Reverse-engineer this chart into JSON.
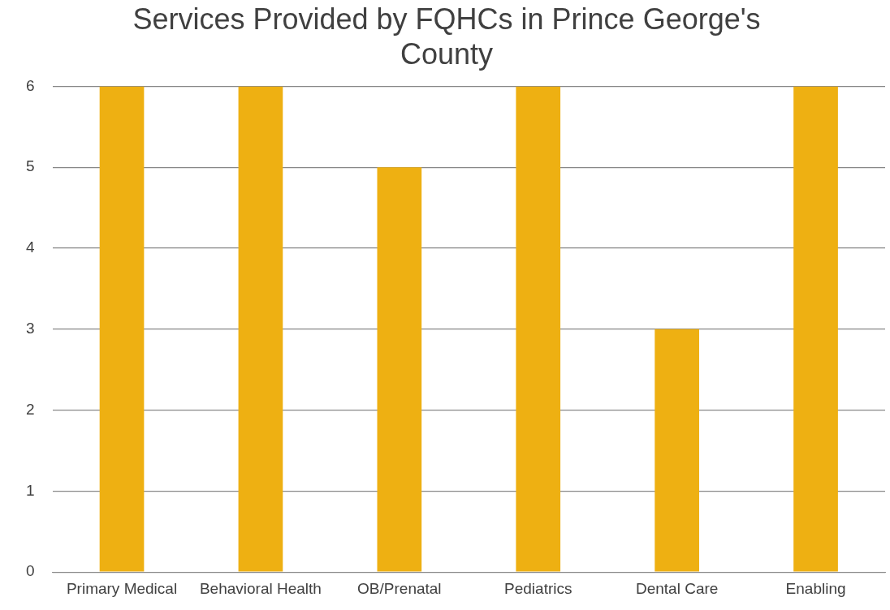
{
  "chart_data": {
    "type": "bar",
    "title": "Services Provided by FQHCs in Prince George's County",
    "categories": [
      "Primary Medical",
      "Behavioral Health",
      "OB/Prenatal",
      "Pediatrics",
      "Dental Care",
      "Enabling"
    ],
    "values": [
      6,
      6,
      5,
      6,
      3,
      6
    ],
    "color": "#eeb012",
    "ylim": [
      0,
      6
    ],
    "yticks": [
      0,
      1,
      2,
      3,
      4,
      5,
      6
    ],
    "grid": "y"
  }
}
